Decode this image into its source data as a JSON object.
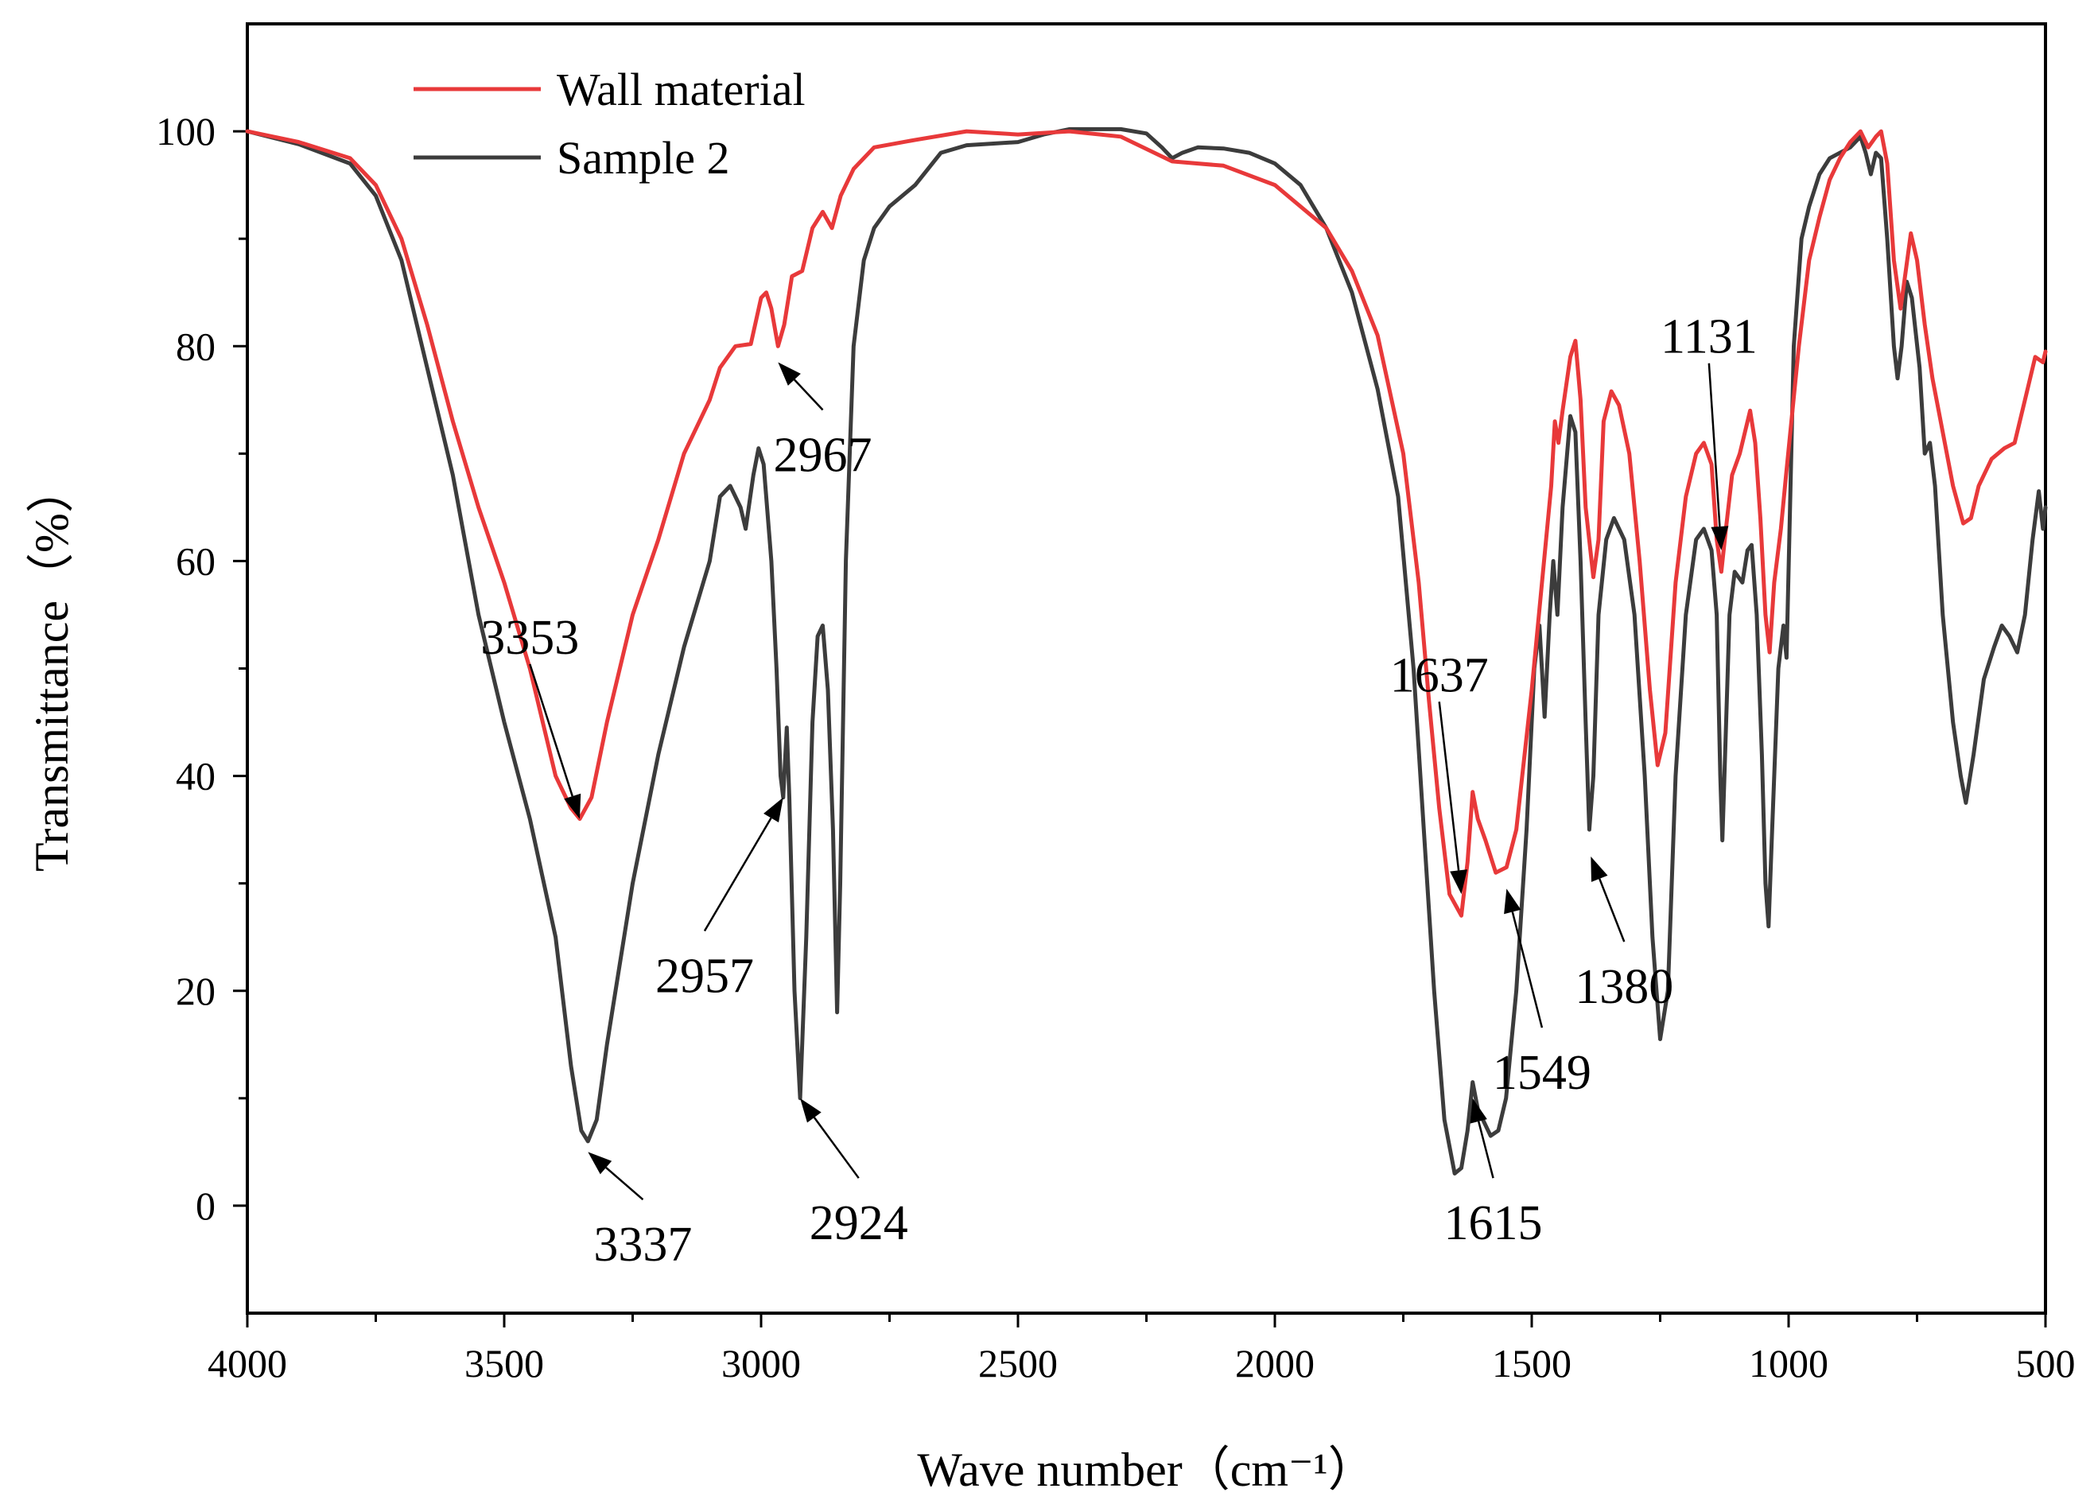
{
  "chart_data": {
    "type": "line",
    "title": "",
    "xlabel": "Wave number（cm⁻¹）",
    "ylabel": "Transmittance（%）",
    "xlim": [
      4000,
      500
    ],
    "x_reversed": true,
    "ylim": [
      -10,
      110
    ],
    "x_ticks": [
      4000,
      3500,
      3000,
      2500,
      2000,
      1500,
      1000,
      500
    ],
    "y_ticks": [
      0,
      20,
      40,
      60,
      80,
      100
    ],
    "grid": false,
    "legend_position": "top-left",
    "series": [
      {
        "name": "Wall material",
        "color": "#e8393a",
        "points": [
          [
            4000,
            100
          ],
          [
            3900,
            99
          ],
          [
            3800,
            97.5
          ],
          [
            3750,
            95
          ],
          [
            3700,
            90
          ],
          [
            3650,
            82
          ],
          [
            3600,
            73
          ],
          [
            3550,
            65
          ],
          [
            3500,
            58
          ],
          [
            3450,
            50
          ],
          [
            3400,
            40
          ],
          [
            3370,
            37
          ],
          [
            3353,
            36
          ],
          [
            3330,
            38
          ],
          [
            3300,
            45
          ],
          [
            3250,
            55
          ],
          [
            3200,
            62
          ],
          [
            3150,
            70
          ],
          [
            3100,
            75
          ],
          [
            3080,
            78
          ],
          [
            3050,
            80
          ],
          [
            3020,
            80.2
          ],
          [
            3000,
            84.5
          ],
          [
            2990,
            85
          ],
          [
            2980,
            83.5
          ],
          [
            2967,
            80
          ],
          [
            2955,
            82
          ],
          [
            2940,
            86.5
          ],
          [
            2920,
            87
          ],
          [
            2900,
            91
          ],
          [
            2880,
            92.5
          ],
          [
            2862,
            91
          ],
          [
            2845,
            94
          ],
          [
            2820,
            96.5
          ],
          [
            2780,
            98.5
          ],
          [
            2700,
            99.2
          ],
          [
            2600,
            100
          ],
          [
            2500,
            99.7
          ],
          [
            2400,
            100
          ],
          [
            2300,
            99.5
          ],
          [
            2200,
            97.2
          ],
          [
            2100,
            96.8
          ],
          [
            2000,
            95
          ],
          [
            1900,
            91
          ],
          [
            1850,
            87
          ],
          [
            1800,
            81
          ],
          [
            1750,
            70
          ],
          [
            1720,
            58
          ],
          [
            1700,
            47
          ],
          [
            1680,
            37
          ],
          [
            1660,
            29
          ],
          [
            1637,
            27
          ],
          [
            1625,
            32
          ],
          [
            1615,
            38.5
          ],
          [
            1605,
            36
          ],
          [
            1590,
            34
          ],
          [
            1570,
            31
          ],
          [
            1549,
            31.5
          ],
          [
            1530,
            35
          ],
          [
            1500,
            48
          ],
          [
            1480,
            58
          ],
          [
            1462,
            67
          ],
          [
            1455,
            73
          ],
          [
            1448,
            71
          ],
          [
            1440,
            74
          ],
          [
            1425,
            79
          ],
          [
            1415,
            80.5
          ],
          [
            1405,
            75
          ],
          [
            1395,
            65
          ],
          [
            1380,
            58.5
          ],
          [
            1370,
            62
          ],
          [
            1360,
            73
          ],
          [
            1345,
            75.8
          ],
          [
            1330,
            74.5
          ],
          [
            1310,
            70
          ],
          [
            1290,
            60
          ],
          [
            1270,
            48
          ],
          [
            1255,
            41
          ],
          [
            1240,
            44
          ],
          [
            1220,
            58
          ],
          [
            1200,
            66
          ],
          [
            1180,
            70
          ],
          [
            1165,
            71
          ],
          [
            1150,
            69
          ],
          [
            1140,
            62
          ],
          [
            1131,
            59
          ],
          [
            1122,
            63
          ],
          [
            1110,
            68
          ],
          [
            1095,
            70
          ],
          [
            1085,
            72
          ],
          [
            1075,
            74
          ],
          [
            1065,
            71
          ],
          [
            1055,
            64
          ],
          [
            1045,
            55
          ],
          [
            1037,
            51.5
          ],
          [
            1028,
            58
          ],
          [
            1015,
            63
          ],
          [
            1005,
            68
          ],
          [
            980,
            80
          ],
          [
            960,
            88
          ],
          [
            940,
            92
          ],
          [
            920,
            95.5
          ],
          [
            900,
            97.5
          ],
          [
            880,
            99
          ],
          [
            860,
            100
          ],
          [
            845,
            98.5
          ],
          [
            830,
            99.5
          ],
          [
            820,
            100
          ],
          [
            808,
            97
          ],
          [
            795,
            88
          ],
          [
            782,
            83.5
          ],
          [
            772,
            87
          ],
          [
            762,
            90.5
          ],
          [
            750,
            88
          ],
          [
            735,
            82
          ],
          [
            720,
            77
          ],
          [
            700,
            72
          ],
          [
            680,
            67
          ],
          [
            660,
            63.5
          ],
          [
            645,
            64
          ],
          [
            630,
            67
          ],
          [
            605,
            69.5
          ],
          [
            580,
            70.5
          ],
          [
            560,
            71
          ],
          [
            540,
            75
          ],
          [
            520,
            79
          ],
          [
            505,
            78.5
          ],
          [
            500,
            79.5
          ]
        ]
      },
      {
        "name": "Sample 2",
        "color": "#3c3c3c",
        "points": [
          [
            4000,
            100
          ],
          [
            3900,
            98.8
          ],
          [
            3800,
            97
          ],
          [
            3750,
            94
          ],
          [
            3700,
            88
          ],
          [
            3650,
            78
          ],
          [
            3600,
            68
          ],
          [
            3550,
            55
          ],
          [
            3500,
            45
          ],
          [
            3450,
            36
          ],
          [
            3400,
            25
          ],
          [
            3370,
            13
          ],
          [
            3350,
            7
          ],
          [
            3337,
            6
          ],
          [
            3320,
            8
          ],
          [
            3300,
            15
          ],
          [
            3250,
            30
          ],
          [
            3200,
            42
          ],
          [
            3150,
            52
          ],
          [
            3100,
            60
          ],
          [
            3080,
            66
          ],
          [
            3060,
            67
          ],
          [
            3040,
            65
          ],
          [
            3030,
            63
          ],
          [
            3015,
            68
          ],
          [
            3005,
            70.5
          ],
          [
            2995,
            69
          ],
          [
            2980,
            60
          ],
          [
            2970,
            50
          ],
          [
            2962,
            40
          ],
          [
            2957,
            38
          ],
          [
            2950,
            44.5
          ],
          [
            2945,
            38
          ],
          [
            2935,
            20
          ],
          [
            2924,
            10
          ],
          [
            2912,
            25
          ],
          [
            2900,
            45
          ],
          [
            2890,
            53
          ],
          [
            2880,
            54
          ],
          [
            2870,
            48
          ],
          [
            2860,
            35
          ],
          [
            2852,
            18
          ],
          [
            2846,
            30
          ],
          [
            2835,
            60
          ],
          [
            2820,
            80
          ],
          [
            2800,
            88
          ],
          [
            2780,
            91
          ],
          [
            2750,
            93
          ],
          [
            2700,
            95
          ],
          [
            2650,
            98
          ],
          [
            2600,
            98.7
          ],
          [
            2500,
            99
          ],
          [
            2450,
            99.7
          ],
          [
            2400,
            100.2
          ],
          [
            2300,
            100.2
          ],
          [
            2250,
            99.8
          ],
          [
            2220,
            98.5
          ],
          [
            2200,
            97.5
          ],
          [
            2180,
            98
          ],
          [
            2150,
            98.5
          ],
          [
            2100,
            98.4
          ],
          [
            2050,
            98
          ],
          [
            2000,
            97
          ],
          [
            1950,
            95
          ],
          [
            1900,
            91
          ],
          [
            1850,
            85
          ],
          [
            1800,
            76
          ],
          [
            1760,
            66
          ],
          [
            1730,
            50
          ],
          [
            1710,
            35
          ],
          [
            1690,
            20
          ],
          [
            1670,
            8
          ],
          [
            1650,
            3
          ],
          [
            1637,
            3.5
          ],
          [
            1625,
            7
          ],
          [
            1615,
            11.5
          ],
          [
            1605,
            9
          ],
          [
            1595,
            8
          ],
          [
            1580,
            6.5
          ],
          [
            1565,
            7
          ],
          [
            1550,
            10
          ],
          [
            1530,
            20
          ],
          [
            1510,
            35
          ],
          [
            1495,
            50
          ],
          [
            1485,
            54
          ],
          [
            1475,
            45.5
          ],
          [
            1465,
            55
          ],
          [
            1458,
            60
          ],
          [
            1450,
            55
          ],
          [
            1440,
            65
          ],
          [
            1425,
            73.5
          ],
          [
            1415,
            72
          ],
          [
            1405,
            60
          ],
          [
            1395,
            45
          ],
          [
            1388,
            35
          ],
          [
            1380,
            40
          ],
          [
            1370,
            55
          ],
          [
            1355,
            62
          ],
          [
            1340,
            64
          ],
          [
            1320,
            62
          ],
          [
            1300,
            55
          ],
          [
            1280,
            40
          ],
          [
            1265,
            25
          ],
          [
            1250,
            15.5
          ],
          [
            1235,
            20
          ],
          [
            1220,
            40
          ],
          [
            1200,
            55
          ],
          [
            1180,
            62
          ],
          [
            1165,
            63
          ],
          [
            1150,
            61
          ],
          [
            1140,
            55
          ],
          [
            1133,
            40
          ],
          [
            1129,
            34
          ],
          [
            1125,
            40
          ],
          [
            1115,
            55
          ],
          [
            1105,
            59
          ],
          [
            1090,
            58
          ],
          [
            1080,
            61
          ],
          [
            1072,
            61.5
          ],
          [
            1062,
            55
          ],
          [
            1052,
            42
          ],
          [
            1045,
            30
          ],
          [
            1039,
            26
          ],
          [
            1032,
            35
          ],
          [
            1020,
            50
          ],
          [
            1010,
            54
          ],
          [
            1004,
            51
          ],
          [
            990,
            80
          ],
          [
            975,
            90
          ],
          [
            960,
            93
          ],
          [
            940,
            96
          ],
          [
            920,
            97.5
          ],
          [
            900,
            98
          ],
          [
            880,
            98.5
          ],
          [
            860,
            99.5
          ],
          [
            850,
            98
          ],
          [
            840,
            96
          ],
          [
            830,
            98
          ],
          [
            820,
            97.5
          ],
          [
            808,
            90
          ],
          [
            795,
            80
          ],
          [
            788,
            77
          ],
          [
            780,
            80
          ],
          [
            770,
            86
          ],
          [
            760,
            84.5
          ],
          [
            745,
            78
          ],
          [
            735,
            70
          ],
          [
            725,
            71
          ],
          [
            715,
            67
          ],
          [
            700,
            55
          ],
          [
            680,
            45
          ],
          [
            665,
            40
          ],
          [
            655,
            37.5
          ],
          [
            640,
            42
          ],
          [
            620,
            49
          ],
          [
            600,
            52
          ],
          [
            585,
            54
          ],
          [
            570,
            53
          ],
          [
            555,
            51.5
          ],
          [
            540,
            55
          ],
          [
            525,
            62
          ],
          [
            513,
            66.5
          ],
          [
            505,
            63
          ],
          [
            500,
            65
          ]
        ]
      }
    ],
    "annotations": [
      {
        "text": "3353",
        "target": [
          3353,
          36
        ],
        "label_pos": [
          3450,
          53
        ]
      },
      {
        "text": "3337",
        "target": [
          3337,
          5
        ],
        "label_pos": [
          3230,
          -3.5
        ]
      },
      {
        "text": "2967",
        "target": [
          2967,
          78.5
        ],
        "label_pos": [
          2880,
          70
        ]
      },
      {
        "text": "2957",
        "target": [
          2957,
          38
        ],
        "label_pos": [
          3110,
          21.5
        ]
      },
      {
        "text": "2924",
        "target": [
          2924,
          10
        ],
        "label_pos": [
          2810,
          -1.5
        ]
      },
      {
        "text": "1637",
        "target": [
          1637,
          29
        ],
        "label_pos": [
          1680,
          49.5
        ]
      },
      {
        "text": "1615",
        "target": [
          1615,
          10
        ],
        "label_pos": [
          1575,
          -1.5
        ]
      },
      {
        "text": "1549",
        "target": [
          1549,
          29.5
        ],
        "label_pos": [
          1480,
          12.5
        ]
      },
      {
        "text": "1380",
        "target": [
          1385,
          32.5
        ],
        "label_pos": [
          1320,
          20.5
        ]
      },
      {
        "text": "1131",
        "target": [
          1131,
          61
        ],
        "label_pos": [
          1155,
          81
        ]
      }
    ]
  }
}
